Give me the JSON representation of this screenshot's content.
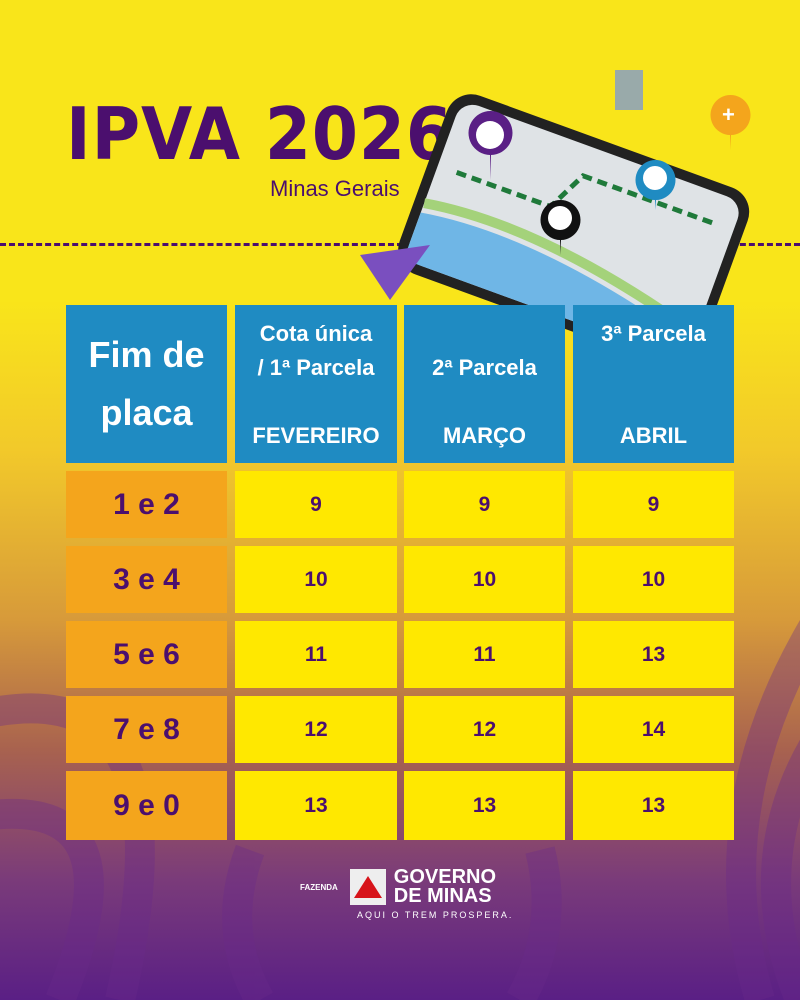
{
  "header": {
    "title": "IPVA 2026",
    "subtitle": "Minas Gerais"
  },
  "table": {
    "corner": "Fim de placa",
    "columns": [
      {
        "label": "Cota única / 1ª Parcela",
        "month": "FEVEREIRO"
      },
      {
        "label": "2ª Parcela",
        "month": "MARÇO"
      },
      {
        "label": "3ª Parcela",
        "month": "ABRIL"
      }
    ],
    "rows": [
      {
        "plate": "1 e 2",
        "values": [
          "9",
          "9",
          "9"
        ]
      },
      {
        "plate": "3 e 4",
        "values": [
          "10",
          "10",
          "10"
        ]
      },
      {
        "plate": "5 e 6",
        "values": [
          "11",
          "11",
          "13"
        ]
      },
      {
        "plate": "7 e 8",
        "values": [
          "12",
          "12",
          "14"
        ]
      },
      {
        "plate": "9 e 0",
        "values": [
          "13",
          "13",
          "13"
        ]
      }
    ]
  },
  "footer": {
    "dept": "FAZENDA",
    "brand_line1": "GOVERNO",
    "brand_line2": "DE MINAS",
    "slogan": "AQUI O TREM PROSPERA."
  },
  "colors": {
    "purple": "#4b0f6e",
    "blue": "#1f8bc2",
    "yellow": "#ffe800",
    "orange": "#f4a51c"
  }
}
